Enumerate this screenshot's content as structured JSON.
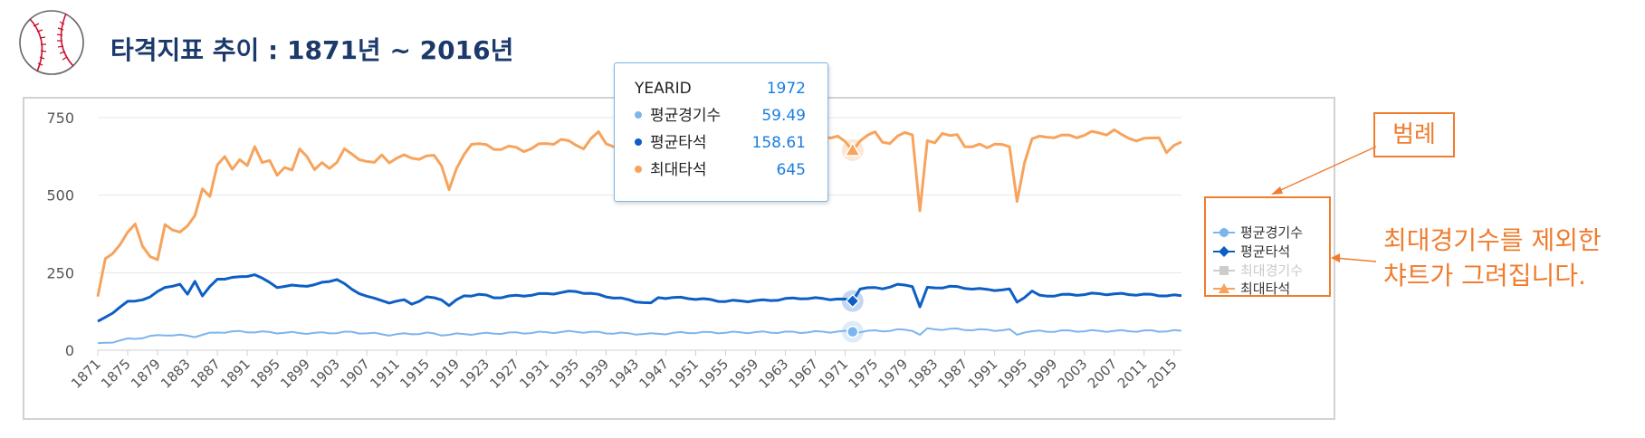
{
  "title": "타격지표 추이 : 1871년 ~ 2016년",
  "tooltip": {
    "header_label": "YEARID",
    "year": "1972",
    "rows": [
      {
        "name": "평균경기수",
        "value": "59.49",
        "color": "#7cb5ec"
      },
      {
        "name": "평균타석",
        "value": "158.61",
        "color": "#0d5fc4"
      },
      {
        "name": "최대타석",
        "value": "645",
        "color": "#f7a35c"
      }
    ]
  },
  "legend": [
    {
      "name": "평균경기수",
      "symbol": "circle",
      "color": "#7cb5ec",
      "visible": true
    },
    {
      "name": "평균타석",
      "symbol": "diamond",
      "color": "#0d5fc4",
      "visible": true
    },
    {
      "name": "최대경기수",
      "symbol": "square",
      "color": "#cccccc",
      "visible": false
    },
    {
      "name": "최대타석",
      "symbol": "triangle",
      "color": "#f7a35c",
      "visible": true
    }
  ],
  "annotations": {
    "legend_label": "범례",
    "note_line1": "최대경기수를 제외한",
    "note_line2": "챠트가 그려집니다."
  },
  "chart_data": {
    "type": "line",
    "x_start": 1871,
    "x_end": 2016,
    "ylim": [
      0,
      750
    ],
    "yticks": [
      0,
      250,
      500,
      750
    ],
    "xtick_labels": [
      "1871",
      "1875",
      "1879",
      "1883",
      "1887",
      "1891",
      "1895",
      "1899",
      "1903",
      "1907",
      "1911",
      "1915",
      "1919",
      "1923",
      "1927",
      "1931",
      "1935",
      "1939",
      "1943",
      "1947",
      "1951",
      "1955",
      "1959",
      "1963",
      "1967",
      "1971",
      "1975",
      "1979",
      "1983",
      "1987",
      "1991",
      "1995",
      "1999",
      "2003",
      "2007",
      "2011",
      "2015"
    ],
    "grid": true,
    "highlight_year": 1972,
    "series": [
      {
        "name": "평균경기수",
        "color": "#7cb5ec",
        "visible": true,
        "keypoints": [
          [
            1871,
            20
          ],
          [
            1875,
            35
          ],
          [
            1880,
            50
          ],
          [
            1884,
            45
          ],
          [
            1887,
            58
          ],
          [
            1890,
            60
          ],
          [
            1895,
            57
          ],
          [
            1900,
            55
          ],
          [
            1905,
            58
          ],
          [
            1910,
            50
          ],
          [
            1915,
            55
          ],
          [
            1917,
            50
          ],
          [
            1920,
            52
          ],
          [
            1925,
            55
          ],
          [
            1930,
            57
          ],
          [
            1935,
            60
          ],
          [
            1940,
            55
          ],
          [
            1945,
            52
          ],
          [
            1950,
            57
          ],
          [
            1955,
            57
          ],
          [
            1960,
            58
          ],
          [
            1965,
            58
          ],
          [
            1970,
            60
          ],
          [
            1972,
            59.49
          ],
          [
            1975,
            62
          ],
          [
            1978,
            65
          ],
          [
            1980,
            65
          ],
          [
            1981,
            50
          ],
          [
            1982,
            68
          ],
          [
            1985,
            68
          ],
          [
            1990,
            65
          ],
          [
            1993,
            65
          ],
          [
            1994,
            50
          ],
          [
            1995,
            60
          ],
          [
            2000,
            62
          ],
          [
            2005,
            62
          ],
          [
            2010,
            62
          ],
          [
            2016,
            62
          ]
        ]
      },
      {
        "name": "평균타석",
        "color": "#0d5fc4",
        "visible": true,
        "keypoints": [
          [
            1871,
            90
          ],
          [
            1875,
            155
          ],
          [
            1878,
            170
          ],
          [
            1880,
            205
          ],
          [
            1882,
            210
          ],
          [
            1883,
            180
          ],
          [
            1884,
            225
          ],
          [
            1885,
            175
          ],
          [
            1887,
            230
          ],
          [
            1890,
            235
          ],
          [
            1892,
            245
          ],
          [
            1893,
            230
          ],
          [
            1895,
            205
          ],
          [
            1900,
            210
          ],
          [
            1903,
            230
          ],
          [
            1905,
            195
          ],
          [
            1908,
            165
          ],
          [
            1910,
            155
          ],
          [
            1912,
            160
          ],
          [
            1913,
            150
          ],
          [
            1915,
            170
          ],
          [
            1917,
            165
          ],
          [
            1918,
            145
          ],
          [
            1919,
            160
          ],
          [
            1920,
            175
          ],
          [
            1922,
            180
          ],
          [
            1924,
            170
          ],
          [
            1930,
            180
          ],
          [
            1935,
            190
          ],
          [
            1940,
            170
          ],
          [
            1945,
            150
          ],
          [
            1946,
            170
          ],
          [
            1950,
            168
          ],
          [
            1955,
            158
          ],
          [
            1960,
            160
          ],
          [
            1965,
            168
          ],
          [
            1970,
            165
          ],
          [
            1972,
            158.61
          ],
          [
            1973,
            200
          ],
          [
            1976,
            200
          ],
          [
            1978,
            210
          ],
          [
            1980,
            208
          ],
          [
            1981,
            140
          ],
          [
            1982,
            200
          ],
          [
            1985,
            205
          ],
          [
            1990,
            195
          ],
          [
            1993,
            195
          ],
          [
            1994,
            155
          ],
          [
            1996,
            190
          ],
          [
            1997,
            175
          ],
          [
            2000,
            178
          ],
          [
            2005,
            182
          ],
          [
            2010,
            180
          ],
          [
            2016,
            175
          ]
        ]
      },
      {
        "name": "최대경기수",
        "color": "#cccccc",
        "visible": false,
        "keypoints": []
      },
      {
        "name": "최대타석",
        "color": "#f7a35c",
        "visible": true,
        "keypoints": [
          [
            1871,
            170
          ],
          [
            1872,
            295
          ],
          [
            1874,
            340
          ],
          [
            1876,
            410
          ],
          [
            1877,
            340
          ],
          [
            1878,
            300
          ],
          [
            1879,
            290
          ],
          [
            1880,
            410
          ],
          [
            1881,
            390
          ],
          [
            1882,
            375
          ],
          [
            1883,
            400
          ],
          [
            1884,
            440
          ],
          [
            1885,
            520
          ],
          [
            1886,
            490
          ],
          [
            1887,
            600
          ],
          [
            1888,
            630
          ],
          [
            1889,
            580
          ],
          [
            1890,
            610
          ],
          [
            1891,
            600
          ],
          [
            1892,
            660
          ],
          [
            1893,
            600
          ],
          [
            1894,
            610
          ],
          [
            1895,
            570
          ],
          [
            1896,
            590
          ],
          [
            1897,
            575
          ],
          [
            1898,
            650
          ],
          [
            1899,
            630
          ],
          [
            1900,
            580
          ],
          [
            1901,
            600
          ],
          [
            1902,
            590
          ],
          [
            1903,
            610
          ],
          [
            1904,
            645
          ],
          [
            1905,
            630
          ],
          [
            1907,
            610
          ],
          [
            1908,
            600
          ],
          [
            1909,
            630
          ],
          [
            1910,
            610
          ],
          [
            1912,
            625
          ],
          [
            1914,
            620
          ],
          [
            1916,
            625
          ],
          [
            1917,
            600
          ],
          [
            1918,
            520
          ],
          [
            1919,
            580
          ],
          [
            1920,
            630
          ],
          [
            1921,
            670
          ],
          [
            1922,
            665
          ],
          [
            1924,
            650
          ],
          [
            1926,
            655
          ],
          [
            1928,
            645
          ],
          [
            1930,
            660
          ],
          [
            1932,
            670
          ],
          [
            1933,
            680
          ],
          [
            1934,
            670
          ],
          [
            1936,
            655
          ],
          [
            1937,
            680
          ],
          [
            1938,
            700
          ],
          [
            1939,
            670
          ],
          [
            1940,
            660
          ],
          [
            1941,
            665
          ],
          [
            1942,
            650
          ],
          [
            1943,
            655
          ],
          [
            1944,
            670
          ],
          [
            1950,
            660
          ],
          [
            1955,
            660
          ],
          [
            1960,
            680
          ],
          [
            1962,
            660
          ],
          [
            1965,
            700
          ],
          [
            1968,
            690
          ],
          [
            1970,
            690
          ],
          [
            1972,
            645
          ],
          [
            1973,
            680
          ],
          [
            1975,
            700
          ],
          [
            1976,
            675
          ],
          [
            1977,
            670
          ],
          [
            1979,
            700
          ],
          [
            1980,
            700
          ],
          [
            1981,
            450
          ],
          [
            1982,
            670
          ],
          [
            1983,
            670
          ],
          [
            1984,
            705
          ],
          [
            1985,
            690
          ],
          [
            1986,
            690
          ],
          [
            1987,
            660
          ],
          [
            1989,
            660
          ],
          [
            1990,
            650
          ],
          [
            1991,
            670
          ],
          [
            1992,
            665
          ],
          [
            1993,
            650
          ],
          [
            1994,
            480
          ],
          [
            1995,
            610
          ],
          [
            1996,
            680
          ],
          [
            1998,
            690
          ],
          [
            2000,
            690
          ],
          [
            2002,
            690
          ],
          [
            2004,
            700
          ],
          [
            2006,
            700
          ],
          [
            2007,
            710
          ],
          [
            2008,
            690
          ],
          [
            2010,
            680
          ],
          [
            2012,
            680
          ],
          [
            2013,
            690
          ],
          [
            2014,
            640
          ],
          [
            2016,
            670
          ]
        ]
      }
    ]
  }
}
